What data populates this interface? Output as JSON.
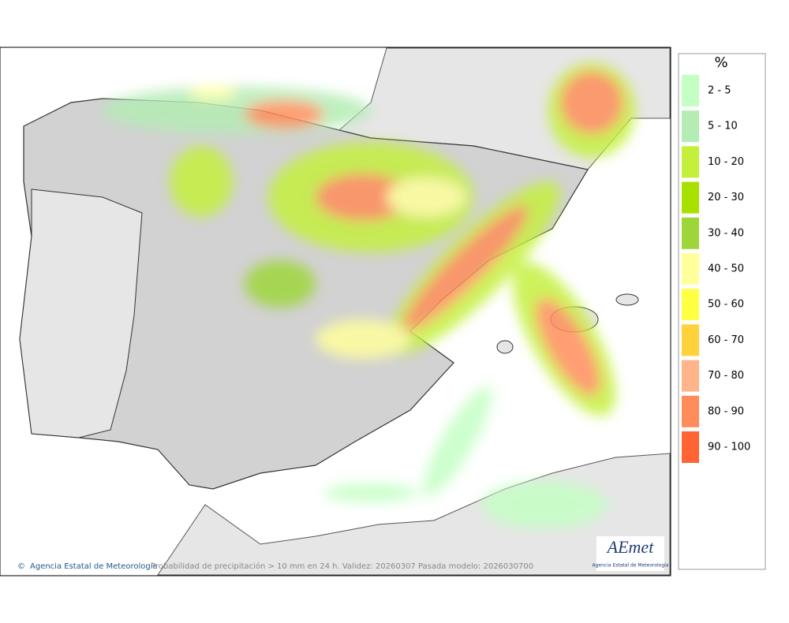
{
  "legend": {
    "title": "%",
    "items": [
      {
        "label": "2 - 5",
        "color": "#c4ffc4"
      },
      {
        "label": "5 - 10",
        "color": "#b4ecb4"
      },
      {
        "label": "10 - 20",
        "color": "#c4f03c"
      },
      {
        "label": "20 - 30",
        "color": "#a8e000"
      },
      {
        "label": "30 - 40",
        "color": "#9ed63a"
      },
      {
        "label": "40 - 50",
        "color": "#ffff9c"
      },
      {
        "label": "50 - 60",
        "color": "#ffff44"
      },
      {
        "label": "60 - 70",
        "color": "#ffd23c"
      },
      {
        "label": "70 - 80",
        "color": "#ffb48a"
      },
      {
        "label": "80 - 90",
        "color": "#ff8c5a"
      },
      {
        "label": "90 - 100",
        "color": "#ff6432"
      }
    ]
  },
  "credit": "Agencia Estatal de Meteorología",
  "caption": "Probabilidad de precipitación > 10 mm en 24 h. Validez: 20260307 Pasada modelo: 2026030700",
  "logo": {
    "name": "AEmet",
    "subtitle": "Agencia Estatal de Meteorología"
  }
}
